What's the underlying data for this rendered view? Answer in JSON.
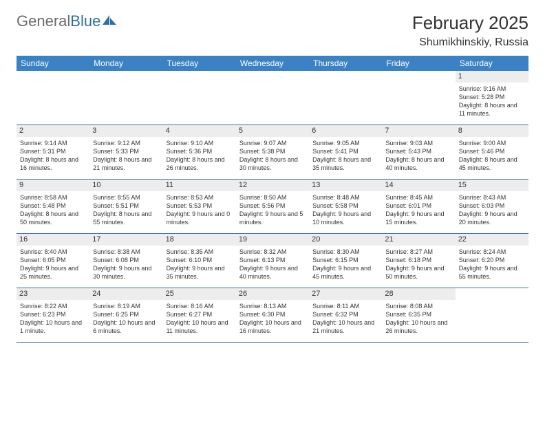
{
  "brand": {
    "part1": "General",
    "part2": "Blue"
  },
  "title": "February 2025",
  "location": "Shumikhinskiy, Russia",
  "colors": {
    "header_bg": "#3b82c4",
    "header_text": "#ffffff",
    "day_number_bg": "#ededed",
    "row_border": "#3b6fa0",
    "text": "#333333",
    "logo_gray": "#6b6b6b",
    "logo_blue": "#2f6fa8"
  },
  "dayHeaders": [
    "Sunday",
    "Monday",
    "Tuesday",
    "Wednesday",
    "Thursday",
    "Friday",
    "Saturday"
  ],
  "weeks": [
    [
      {
        "n": "",
        "lines": []
      },
      {
        "n": "",
        "lines": []
      },
      {
        "n": "",
        "lines": []
      },
      {
        "n": "",
        "lines": []
      },
      {
        "n": "",
        "lines": []
      },
      {
        "n": "",
        "lines": []
      },
      {
        "n": "1",
        "lines": [
          "Sunrise: 9:16 AM",
          "Sunset: 5:28 PM",
          "Daylight: 8 hours and 11 minutes."
        ]
      }
    ],
    [
      {
        "n": "2",
        "lines": [
          "Sunrise: 9:14 AM",
          "Sunset: 5:31 PM",
          "Daylight: 8 hours and 16 minutes."
        ]
      },
      {
        "n": "3",
        "lines": [
          "Sunrise: 9:12 AM",
          "Sunset: 5:33 PM",
          "Daylight: 8 hours and 21 minutes."
        ]
      },
      {
        "n": "4",
        "lines": [
          "Sunrise: 9:10 AM",
          "Sunset: 5:36 PM",
          "Daylight: 8 hours and 26 minutes."
        ]
      },
      {
        "n": "5",
        "lines": [
          "Sunrise: 9:07 AM",
          "Sunset: 5:38 PM",
          "Daylight: 8 hours and 30 minutes."
        ]
      },
      {
        "n": "6",
        "lines": [
          "Sunrise: 9:05 AM",
          "Sunset: 5:41 PM",
          "Daylight: 8 hours and 35 minutes."
        ]
      },
      {
        "n": "7",
        "lines": [
          "Sunrise: 9:03 AM",
          "Sunset: 5:43 PM",
          "Daylight: 8 hours and 40 minutes."
        ]
      },
      {
        "n": "8",
        "lines": [
          "Sunrise: 9:00 AM",
          "Sunset: 5:46 PM",
          "Daylight: 8 hours and 45 minutes."
        ]
      }
    ],
    [
      {
        "n": "9",
        "lines": [
          "Sunrise: 8:58 AM",
          "Sunset: 5:48 PM",
          "Daylight: 8 hours and 50 minutes."
        ]
      },
      {
        "n": "10",
        "lines": [
          "Sunrise: 8:55 AM",
          "Sunset: 5:51 PM",
          "Daylight: 8 hours and 55 minutes."
        ]
      },
      {
        "n": "11",
        "lines": [
          "Sunrise: 8:53 AM",
          "Sunset: 5:53 PM",
          "Daylight: 9 hours and 0 minutes."
        ]
      },
      {
        "n": "12",
        "lines": [
          "Sunrise: 8:50 AM",
          "Sunset: 5:56 PM",
          "Daylight: 9 hours and 5 minutes."
        ]
      },
      {
        "n": "13",
        "lines": [
          "Sunrise: 8:48 AM",
          "Sunset: 5:58 PM",
          "Daylight: 9 hours and 10 minutes."
        ]
      },
      {
        "n": "14",
        "lines": [
          "Sunrise: 8:45 AM",
          "Sunset: 6:01 PM",
          "Daylight: 9 hours and 15 minutes."
        ]
      },
      {
        "n": "15",
        "lines": [
          "Sunrise: 8:43 AM",
          "Sunset: 6:03 PM",
          "Daylight: 9 hours and 20 minutes."
        ]
      }
    ],
    [
      {
        "n": "16",
        "lines": [
          "Sunrise: 8:40 AM",
          "Sunset: 6:05 PM",
          "Daylight: 9 hours and 25 minutes."
        ]
      },
      {
        "n": "17",
        "lines": [
          "Sunrise: 8:38 AM",
          "Sunset: 6:08 PM",
          "Daylight: 9 hours and 30 minutes."
        ]
      },
      {
        "n": "18",
        "lines": [
          "Sunrise: 8:35 AM",
          "Sunset: 6:10 PM",
          "Daylight: 9 hours and 35 minutes."
        ]
      },
      {
        "n": "19",
        "lines": [
          "Sunrise: 8:32 AM",
          "Sunset: 6:13 PM",
          "Daylight: 9 hours and 40 minutes."
        ]
      },
      {
        "n": "20",
        "lines": [
          "Sunrise: 8:30 AM",
          "Sunset: 6:15 PM",
          "Daylight: 9 hours and 45 minutes."
        ]
      },
      {
        "n": "21",
        "lines": [
          "Sunrise: 8:27 AM",
          "Sunset: 6:18 PM",
          "Daylight: 9 hours and 50 minutes."
        ]
      },
      {
        "n": "22",
        "lines": [
          "Sunrise: 8:24 AM",
          "Sunset: 6:20 PM",
          "Daylight: 9 hours and 55 minutes."
        ]
      }
    ],
    [
      {
        "n": "23",
        "lines": [
          "Sunrise: 8:22 AM",
          "Sunset: 6:23 PM",
          "Daylight: 10 hours and 1 minute."
        ]
      },
      {
        "n": "24",
        "lines": [
          "Sunrise: 8:19 AM",
          "Sunset: 6:25 PM",
          "Daylight: 10 hours and 6 minutes."
        ]
      },
      {
        "n": "25",
        "lines": [
          "Sunrise: 8:16 AM",
          "Sunset: 6:27 PM",
          "Daylight: 10 hours and 11 minutes."
        ]
      },
      {
        "n": "26",
        "lines": [
          "Sunrise: 8:13 AM",
          "Sunset: 6:30 PM",
          "Daylight: 10 hours and 16 minutes."
        ]
      },
      {
        "n": "27",
        "lines": [
          "Sunrise: 8:11 AM",
          "Sunset: 6:32 PM",
          "Daylight: 10 hours and 21 minutes."
        ]
      },
      {
        "n": "28",
        "lines": [
          "Sunrise: 8:08 AM",
          "Sunset: 6:35 PM",
          "Daylight: 10 hours and 26 minutes."
        ]
      },
      {
        "n": "",
        "lines": []
      }
    ]
  ]
}
